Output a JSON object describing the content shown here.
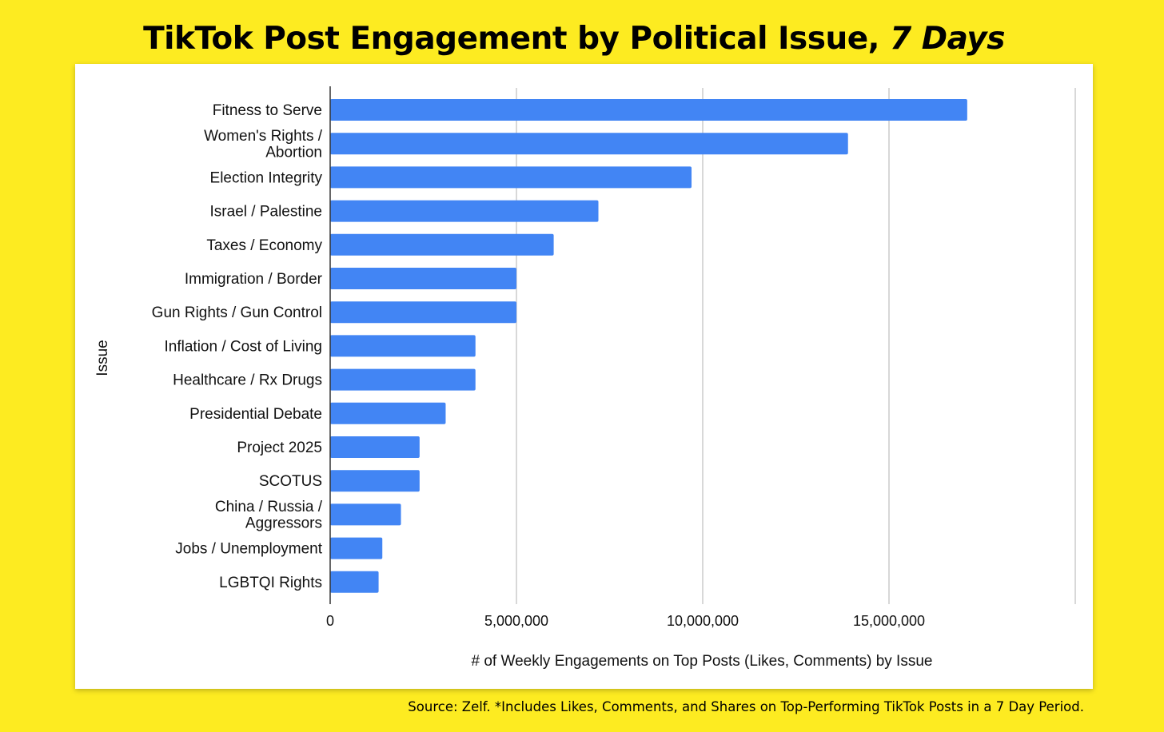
{
  "title": {
    "main": "TikTok Post Engagement by Political Issue, ",
    "emphasis": "7 Days"
  },
  "source": "Source: Zelf. *Includes Likes, Comments, and Shares on Top-Performing TikTok Posts in a 7 Day Period.",
  "chart_data": {
    "type": "bar",
    "orientation": "horizontal",
    "xlabel": "# of Weekly Engagements on Top Posts  (Likes, Comments) by Issue",
    "ylabel": "Issue",
    "xlim": [
      0,
      20000000
    ],
    "x_ticks": [
      0,
      5000000,
      10000000,
      15000000
    ],
    "x_tick_labels": [
      "0",
      "5,000,000",
      "10,000,000",
      "15,000,000"
    ],
    "grid": true,
    "bar_color": "#4285F4",
    "categories": [
      [
        "Fitness to Serve"
      ],
      [
        "Women's Rights /",
        "Abortion"
      ],
      [
        "Election Integrity"
      ],
      [
        "Israel / Palestine"
      ],
      [
        "Taxes / Economy"
      ],
      [
        "Immigration / Border"
      ],
      [
        "Gun Rights / Gun Control"
      ],
      [
        "Inflation / Cost of Living"
      ],
      [
        "Healthcare / Rx Drugs"
      ],
      [
        "Presidential Debate"
      ],
      [
        "Project 2025"
      ],
      [
        "SCOTUS"
      ],
      [
        "China / Russia /",
        "Aggressors"
      ],
      [
        "Jobs / Unemployment"
      ],
      [
        "LGBTQI Rights"
      ]
    ],
    "values": [
      17100000,
      13900000,
      9700000,
      7200000,
      6000000,
      5000000,
      5000000,
      3900000,
      3900000,
      3100000,
      2400000,
      2400000,
      1900000,
      1400000,
      1300000
    ]
  }
}
